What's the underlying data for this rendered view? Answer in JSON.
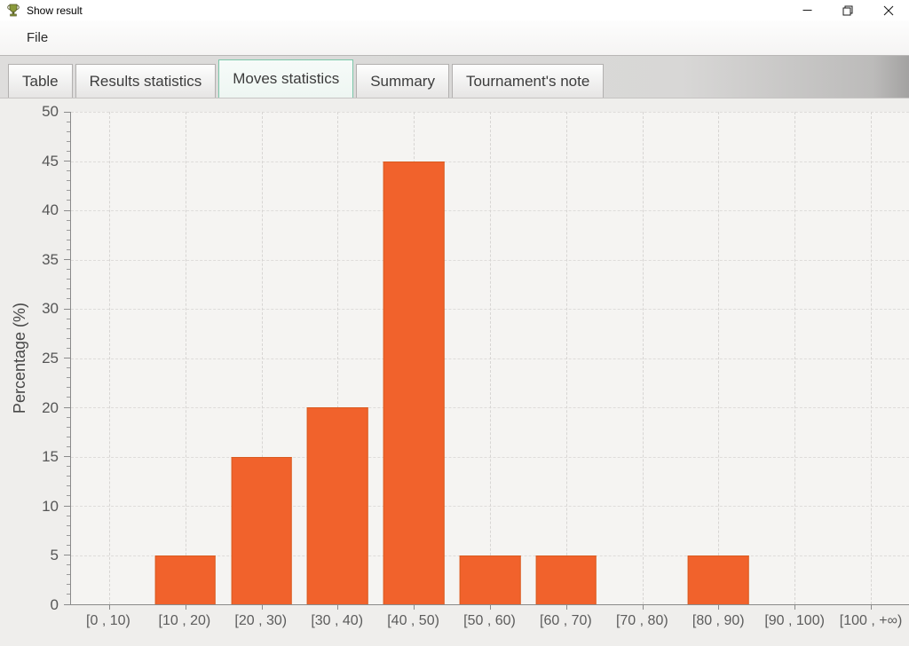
{
  "window": {
    "title": "Show result",
    "app_icon": "trophy-icon",
    "controls": {
      "minimize_icon": "minimize-icon",
      "restore_icon": "restore-icon",
      "close_icon": "close-icon"
    }
  },
  "menu": {
    "items": [
      {
        "label": "File"
      }
    ]
  },
  "tabs": [
    {
      "label": "Table",
      "active": false
    },
    {
      "label": "Results statistics",
      "active": false
    },
    {
      "label": "Moves statistics",
      "active": true
    },
    {
      "label": "Summary",
      "active": false
    },
    {
      "label": "Tournament's note",
      "active": false
    }
  ],
  "colors": {
    "active_tab_border": "#7cc7a9",
    "bar_fill": "#f1622c",
    "bar_border": "#d95b20",
    "trophy_green": "#8a9a3a"
  },
  "chart_data": {
    "type": "bar",
    "title": "",
    "xlabel": "",
    "ylabel": "Percentage (%)",
    "categories": [
      "[0 , 10)",
      "[10 , 20)",
      "[20 , 30)",
      "[30 , 40)",
      "[40 , 50)",
      "[50 , 60)",
      "[60 , 70)",
      "[70 , 80)",
      "[80 , 90)",
      "[90 , 100)",
      "[100 , +∞)"
    ],
    "values": [
      0,
      5,
      15,
      20,
      45,
      5,
      5,
      0,
      5,
      0,
      0
    ],
    "ylim": [
      0,
      50
    ],
    "ytick_step": 5,
    "yminor_step": 1,
    "grid": true,
    "legend": "none"
  }
}
